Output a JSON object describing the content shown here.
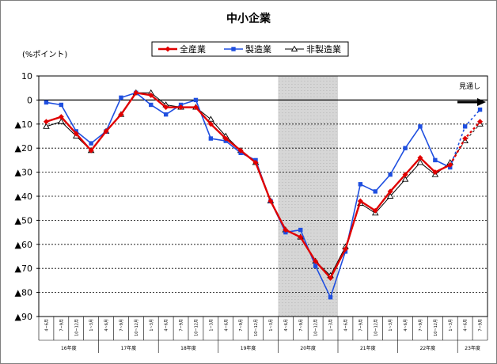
{
  "chart_data": {
    "type": "line",
    "title": "中小企業",
    "ylabel": "(%ポイント)",
    "ylim": [
      -90,
      10
    ],
    "yticks": [
      10,
      0,
      -10,
      -20,
      -30,
      -40,
      -50,
      -60,
      -70,
      -80,
      -90
    ],
    "ytick_labels": [
      "10",
      "0",
      "▲10",
      "▲20",
      "▲30",
      "▲40",
      "▲50",
      "▲60",
      "▲70",
      "▲80",
      "▲90"
    ],
    "grid": true,
    "legend_position": "top-center",
    "forecast_label": "見通し",
    "categories": [
      "4~6月",
      "7~9月",
      "10~12月",
      "1~3月",
      "4~6月",
      "7~9月",
      "10~12月",
      "1~3月",
      "4~6月",
      "7~9月",
      "10~12月",
      "1~3月",
      "4~6月",
      "7~9月",
      "10~12月",
      "1~3月",
      "4~6月",
      "7~9月",
      "10~12月",
      "1~3月",
      "4~6月",
      "7~9月",
      "10~12月",
      "1~3月",
      "4~6月",
      "7~9月",
      "10~12月",
      "1~3月",
      "4~6月",
      "7~9月"
    ],
    "fiscal_years": [
      {
        "label": "16年度",
        "start": 0,
        "end": 3
      },
      {
        "label": "17年度",
        "start": 4,
        "end": 7
      },
      {
        "label": "18年度",
        "start": 8,
        "end": 11
      },
      {
        "label": "19年度",
        "start": 12,
        "end": 15
      },
      {
        "label": "20年度",
        "start": 16,
        "end": 19
      },
      {
        "label": "21年度",
        "start": 20,
        "end": 23
      },
      {
        "label": "22年度",
        "start": 24,
        "end": 27
      },
      {
        "label": "23年度",
        "start": 28,
        "end": 29
      }
    ],
    "shaded_period": {
      "start": 15,
      "end": 19
    },
    "forecast_start": 27,
    "series": [
      {
        "name": "全産業",
        "color": "#e00000",
        "marker": "diamond",
        "values": [
          -9,
          -7,
          -14,
          -21,
          -13,
          -6,
          3,
          2,
          -3,
          -3,
          -3,
          -10,
          -16,
          -21,
          -26,
          -42,
          -54,
          -57,
          -67,
          -74,
          -62,
          -42,
          -46,
          -38,
          -31,
          -24,
          -30,
          -27,
          -16,
          -9
        ]
      },
      {
        "name": "製造業",
        "color": "#1f4fe0",
        "marker": "square",
        "values": [
          -1,
          -2,
          -13,
          -18,
          -13,
          1,
          3,
          -2,
          -6,
          -2,
          0,
          -16,
          -17,
          -22,
          -25,
          -42,
          -55,
          -54,
          -69,
          -82,
          -63,
          -35,
          -38,
          -31,
          -20,
          -11,
          -25,
          -28,
          -11,
          -4
        ]
      },
      {
        "name": "非製造業",
        "color": "#000000",
        "marker": "triangle",
        "values": [
          -11,
          -9,
          -15,
          -21,
          -13,
          -6,
          3,
          3,
          -2,
          -3,
          -3,
          -8,
          -15,
          -21,
          -26,
          -42,
          -54,
          -57,
          -67,
          -73,
          -61,
          -43,
          -47,
          -40,
          -33,
          -26,
          -31,
          -26,
          -17,
          -10
        ]
      }
    ]
  }
}
